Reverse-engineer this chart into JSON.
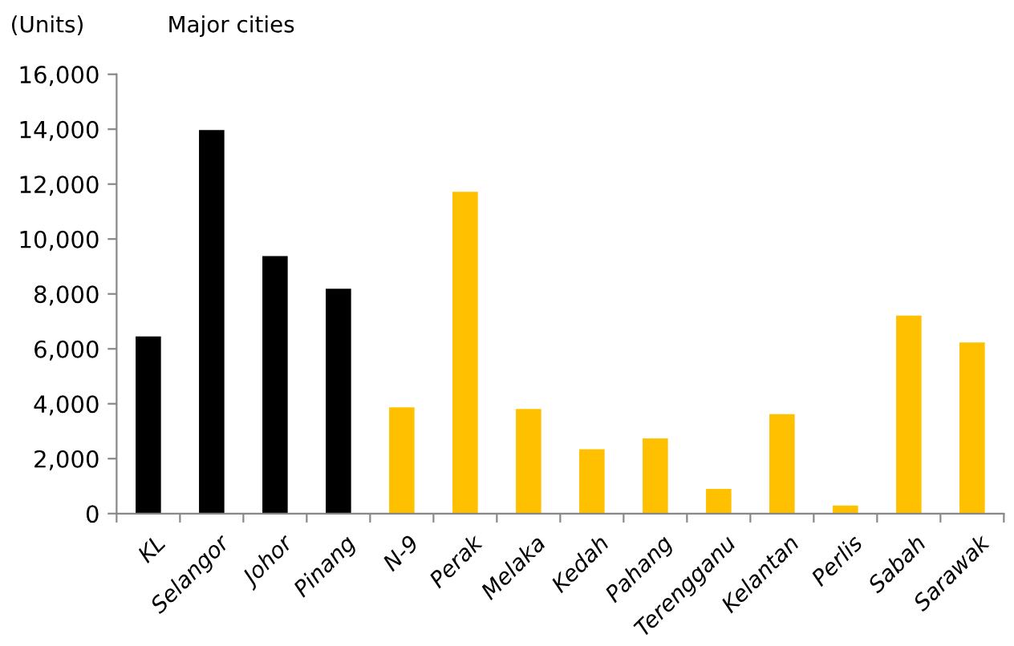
{
  "chart_data": {
    "type": "bar",
    "ylabel": "(Units)",
    "annotations": [
      "Major cities"
    ],
    "categories": [
      "KL",
      "Selangor",
      "Johor",
      "Pinang",
      "N-9",
      "Perak",
      "Melaka",
      "Kedah",
      "Pahang",
      "Terengganu",
      "Kelantan",
      "Perlis",
      "Sabah",
      "Sarawak"
    ],
    "values": [
      6450,
      13970,
      9380,
      8190,
      3870,
      11720,
      3810,
      2340,
      2740,
      900,
      3620,
      290,
      7210,
      6230
    ],
    "colors": [
      "#000000",
      "#000000",
      "#000000",
      "#000000",
      "#ffc000",
      "#ffc000",
      "#ffc000",
      "#ffc000",
      "#ffc000",
      "#ffc000",
      "#ffc000",
      "#ffc000",
      "#ffc000",
      "#ffc000"
    ],
    "ylim": [
      0,
      16000
    ],
    "yticks": [
      {
        "value": 0,
        "label": "0"
      },
      {
        "value": 2000,
        "label": "2,000"
      },
      {
        "value": 4000,
        "label": "4,000"
      },
      {
        "value": 6000,
        "label": "6,000"
      },
      {
        "value": 8000,
        "label": "8,000"
      },
      {
        "value": 10000,
        "label": "10,000"
      },
      {
        "value": 12000,
        "label": "12,000"
      },
      {
        "value": 14000,
        "label": "14,000"
      },
      {
        "value": 16000,
        "label": "16,000"
      }
    ],
    "grid": false,
    "legend": false
  }
}
